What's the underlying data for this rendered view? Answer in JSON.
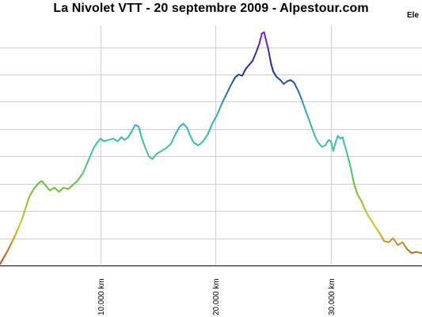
{
  "title": "La Nivolet VTT - 20 septembre 2009 - Alpestour.com",
  "corner_label": "Ele",
  "colors": {
    "gridline": "#cfcfcf",
    "axis": "#000000",
    "background": "#ffffff",
    "elevation_gradient": [
      "#b5401a",
      "#d9c21c",
      "#60c430",
      "#3cc4a0",
      "#2aa8c8",
      "#1c2a96",
      "#8a1ccc"
    ]
  },
  "chart_data": {
    "type": "line",
    "title": "La Nivolet VTT - 20 septembre 2009 - Alpestour.com",
    "xlabel": "",
    "ylabel": "",
    "x_unit": "km",
    "xlim": [
      1.28,
      37.9
    ],
    "ylim": [
      0,
      8.8
    ],
    "grid": true,
    "legend": "none",
    "x_ticks": [
      {
        "value": 10.0,
        "label": "10.000 km"
      },
      {
        "value": 20.0,
        "label": "20.000 km"
      },
      {
        "value": 30.0,
        "label": "30.000 km"
      }
    ],
    "y_gridlines": [
      1,
      2,
      3,
      4,
      5,
      6,
      7,
      8
    ],
    "series": [
      {
        "x": [
          1.28,
          1.9,
          2.6,
          3.2,
          3.8,
          4.2,
          4.6,
          4.9,
          5.2,
          5.6,
          6.0,
          6.4,
          6.8,
          7.2,
          7.6,
          8.0,
          8.5,
          9.0,
          9.4,
          9.7,
          10.0,
          10.3,
          10.7,
          11.1,
          11.5,
          11.8,
          12.1,
          12.4,
          12.7,
          13.0,
          13.3,
          13.6,
          13.9,
          14.2,
          14.5,
          14.9,
          15.3,
          15.7,
          16.1,
          16.5,
          16.9,
          17.2,
          17.5,
          17.8,
          18.1,
          18.5,
          18.9,
          19.3,
          19.7,
          20.1,
          20.5,
          20.9,
          21.3,
          21.7,
          22.0,
          22.3,
          22.6,
          22.9,
          23.2,
          23.5,
          23.8,
          24.0,
          24.2,
          24.4,
          24.6,
          24.8,
          25.0,
          25.3,
          25.6,
          25.9,
          26.2,
          26.5,
          26.8,
          27.1,
          27.4,
          27.7,
          28.0,
          28.3,
          28.6,
          28.9,
          29.2,
          29.5,
          29.8,
          30.0,
          30.2,
          30.4,
          30.6,
          30.8,
          31.0,
          31.2,
          31.4,
          31.7,
          32.0,
          32.3,
          32.6,
          32.9,
          33.2,
          33.5,
          33.8,
          34.2,
          34.6,
          35.0,
          35.4,
          35.8,
          36.2,
          36.6,
          37.0,
          37.4,
          37.9
        ],
        "y": [
          0.05,
          0.5,
          1.1,
          1.7,
          2.5,
          2.8,
          3.0,
          3.1,
          2.95,
          2.75,
          2.85,
          2.7,
          2.85,
          2.8,
          2.95,
          3.1,
          3.4,
          3.9,
          4.3,
          4.5,
          4.65,
          4.55,
          4.6,
          4.65,
          4.55,
          4.7,
          4.6,
          4.7,
          4.9,
          5.15,
          5.1,
          4.65,
          4.3,
          4.0,
          3.9,
          4.1,
          4.2,
          4.3,
          4.45,
          4.8,
          5.1,
          5.2,
          5.05,
          4.75,
          4.5,
          4.4,
          4.55,
          4.8,
          5.2,
          5.5,
          5.9,
          6.25,
          6.6,
          6.9,
          7.0,
          6.95,
          7.2,
          7.35,
          7.5,
          7.8,
          8.15,
          8.5,
          8.55,
          8.2,
          7.85,
          7.4,
          7.1,
          6.9,
          6.8,
          6.65,
          6.75,
          6.8,
          6.7,
          6.45,
          6.15,
          5.8,
          5.45,
          5.1,
          4.75,
          4.5,
          4.35,
          4.4,
          4.6,
          4.55,
          4.2,
          4.5,
          4.75,
          4.65,
          4.7,
          4.4,
          4.1,
          3.6,
          3.0,
          2.6,
          2.4,
          2.1,
          1.85,
          1.65,
          1.45,
          1.2,
          0.9,
          0.85,
          1.0,
          0.75,
          0.85,
          0.6,
          0.45,
          0.5,
          0.45
        ]
      }
    ]
  }
}
